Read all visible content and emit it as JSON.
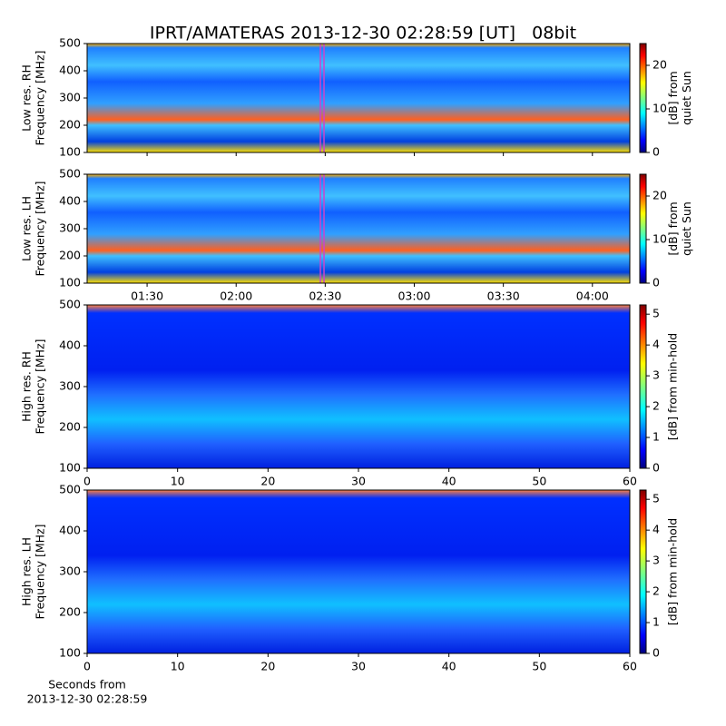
{
  "title": "IPRT/AMATERAS 2013-12-30 02:28:59 [UT]   08bit",
  "chart_data": [
    {
      "type": "spectrogram",
      "ylabel": [
        "Low res. RH",
        "Frequency [MHz]"
      ],
      "ylim": [
        100,
        500
      ],
      "yticks": [
        100,
        200,
        300,
        400,
        500
      ],
      "xlim": [
        69.8,
        252.6
      ],
      "marker": 148.98,
      "marker_color": "#cc44cc",
      "colormap": "jet",
      "clim": [
        0,
        25
      ],
      "cticks": [
        0,
        10,
        20
      ],
      "clabel": [
        "[dB] from",
        "quiet Sun"
      ]
    },
    {
      "type": "spectrogram",
      "ylabel": [
        "Low res. LH",
        "Frequency [MHz]"
      ],
      "ylim": [
        100,
        500
      ],
      "yticks": [
        100,
        200,
        300,
        400,
        500
      ],
      "xlim": [
        69.8,
        252.6
      ],
      "marker": 148.98,
      "marker_color": "#cc44cc",
      "xticks": [
        {
          "value": 90,
          "label": "01:30"
        },
        {
          "value": 120,
          "label": "02:00"
        },
        {
          "value": 150,
          "label": "02:30"
        },
        {
          "value": 180,
          "label": "03:00"
        },
        {
          "value": 210,
          "label": "03:30"
        },
        {
          "value": 240,
          "label": "04:00"
        }
      ],
      "colormap": "jet",
      "clim": [
        0,
        25
      ],
      "cticks": [
        0,
        10,
        20
      ],
      "clabel": [
        "[dB] from",
        "quiet Sun"
      ]
    },
    {
      "type": "spectrogram",
      "ylabel": [
        "High res. RH",
        "Frequency [MHz]"
      ],
      "ylim": [
        100,
        500
      ],
      "yticks": [
        100,
        200,
        300,
        400,
        500
      ],
      "xlim": [
        0,
        60
      ],
      "xticks": [
        0,
        10,
        20,
        30,
        40,
        50,
        60
      ],
      "colormap": "jet",
      "clim": [
        0,
        5.3
      ],
      "cticks": [
        0,
        1,
        2,
        3,
        4,
        5
      ],
      "clabel": [
        "[dB] from min-hold"
      ]
    },
    {
      "type": "spectrogram",
      "ylabel": [
        "High res. LH",
        "Frequency [MHz]"
      ],
      "ylim": [
        100,
        500
      ],
      "yticks": [
        100,
        200,
        300,
        400,
        500
      ],
      "xlim": [
        0,
        60
      ],
      "xticks": [
        0,
        10,
        20,
        30,
        40,
        50,
        60
      ],
      "xlabel": [
        "Seconds from",
        "2013-12-30 02:28:59"
      ],
      "colormap": "jet",
      "clim": [
        0,
        5.3
      ],
      "cticks": [
        0,
        1,
        2,
        3,
        4,
        5
      ],
      "clabel": [
        "[dB] from min-hold"
      ]
    }
  ]
}
